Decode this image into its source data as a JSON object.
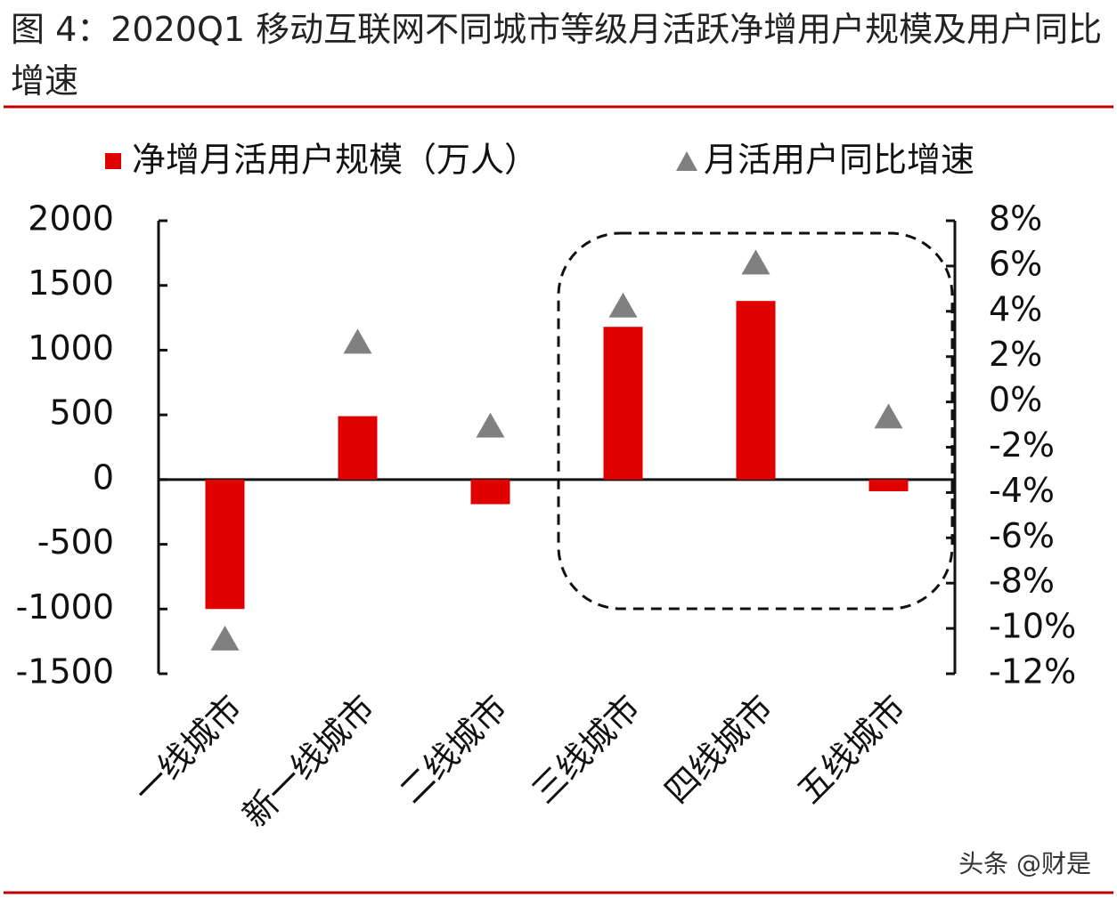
{
  "title": "图 4：2020Q1 移动互联网不同城市等级月活跃净增用户规模及用户同比增速",
  "watermark": "头条 @财是",
  "chart_data": {
    "type": "bar",
    "categories": [
      "一线城市",
      "新一线城市",
      "二线城市",
      "三线城市",
      "四线城市",
      "五线城市"
    ],
    "series": [
      {
        "name": "净增月活用户规模（万人）",
        "color": "#e00000",
        "type": "bar",
        "values": [
          -1000,
          490,
          -190,
          1180,
          1380,
          -90
        ]
      },
      {
        "name": "月活用户同比增速",
        "color": "#808080",
        "type": "scatter",
        "axis": "y2",
        "values": [
          -10.5,
          2.6,
          -1.1,
          4.2,
          6.1,
          -0.7
        ]
      }
    ],
    "ylim": [
      -1500,
      2000
    ],
    "yticks": [
      -1500,
      -1000,
      -500,
      0,
      500,
      1000,
      1500,
      2000
    ],
    "y2lim": [
      -12,
      8
    ],
    "y2ticks": [
      {
        "value": -12,
        "label": "-12%"
      },
      {
        "value": -10,
        "label": "-10%"
      },
      {
        "value": -8,
        "label": "-8%"
      },
      {
        "value": -6,
        "label": "-6%"
      },
      {
        "value": -4,
        "label": "-4%"
      },
      {
        "value": -2,
        "label": "-2%"
      },
      {
        "value": 0,
        "label": "0%"
      },
      {
        "value": 2,
        "label": "2%"
      },
      {
        "value": 4,
        "label": "4%"
      },
      {
        "value": 6,
        "label": "6%"
      },
      {
        "value": 8,
        "label": "8%"
      }
    ]
  }
}
